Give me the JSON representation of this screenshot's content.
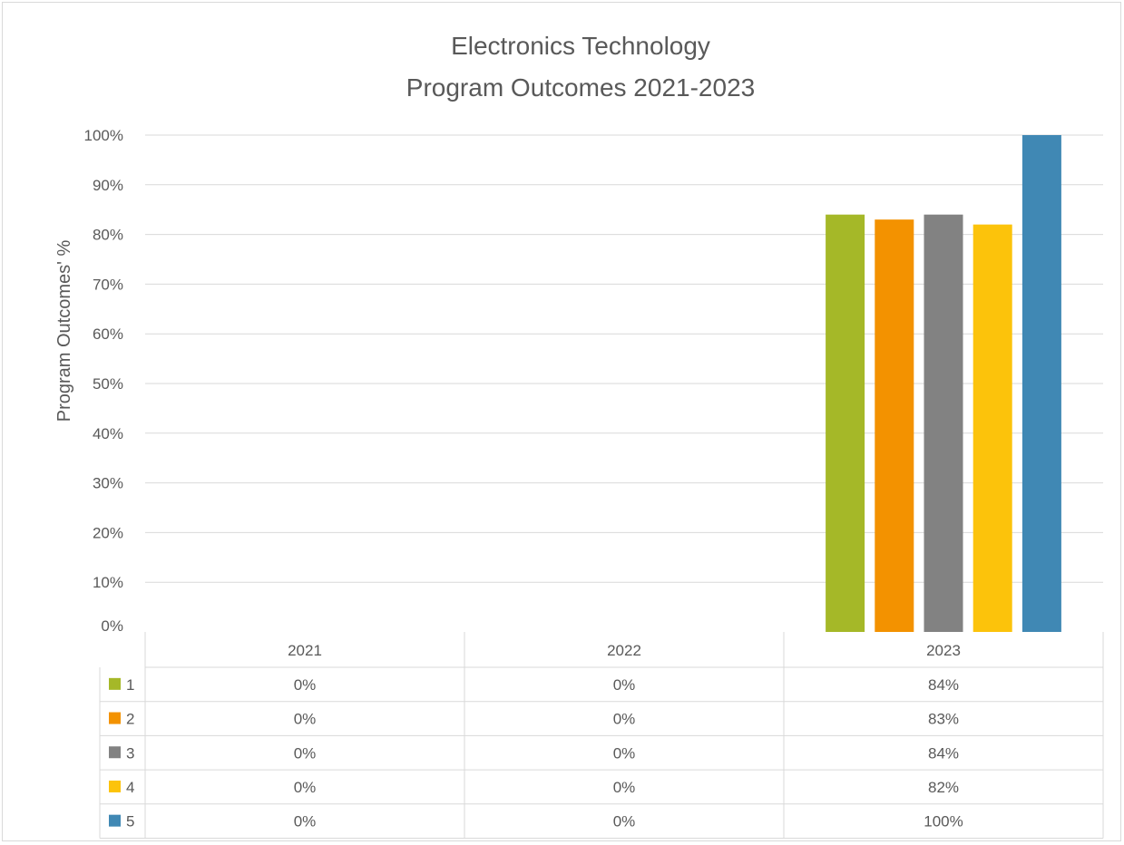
{
  "chart_data": {
    "type": "bar",
    "title": [
      "Electronics Technology",
      "Program Outcomes 2021-2023"
    ],
    "ylabel": "Program Outcomes' %",
    "xlabel": "",
    "categories": [
      "2021",
      "2022",
      "2023"
    ],
    "ylim": [
      0,
      100
    ],
    "yticks": [
      "0%",
      "10%",
      "20%",
      "30%",
      "40%",
      "50%",
      "60%",
      "70%",
      "80%",
      "90%",
      "100%"
    ],
    "grid": true,
    "legend": "data-table",
    "series": [
      {
        "name": "1",
        "color": "#a5b828",
        "values": [
          0,
          0,
          84
        ],
        "labels": [
          "0%",
          "0%",
          "84%"
        ]
      },
      {
        "name": "2",
        "color": "#f39200",
        "values": [
          0,
          0,
          83
        ],
        "labels": [
          "0%",
          "0%",
          "83%"
        ]
      },
      {
        "name": "3",
        "color": "#828282",
        "values": [
          0,
          0,
          84
        ],
        "labels": [
          "0%",
          "0%",
          "84%"
        ]
      },
      {
        "name": "4",
        "color": "#fcc30b",
        "values": [
          0,
          0,
          82
        ],
        "labels": [
          "0%",
          "0%",
          "82%"
        ]
      },
      {
        "name": "5",
        "color": "#4088b4",
        "values": [
          0,
          0,
          100
        ],
        "labels": [
          "0%",
          "0%",
          "100%"
        ]
      }
    ]
  }
}
